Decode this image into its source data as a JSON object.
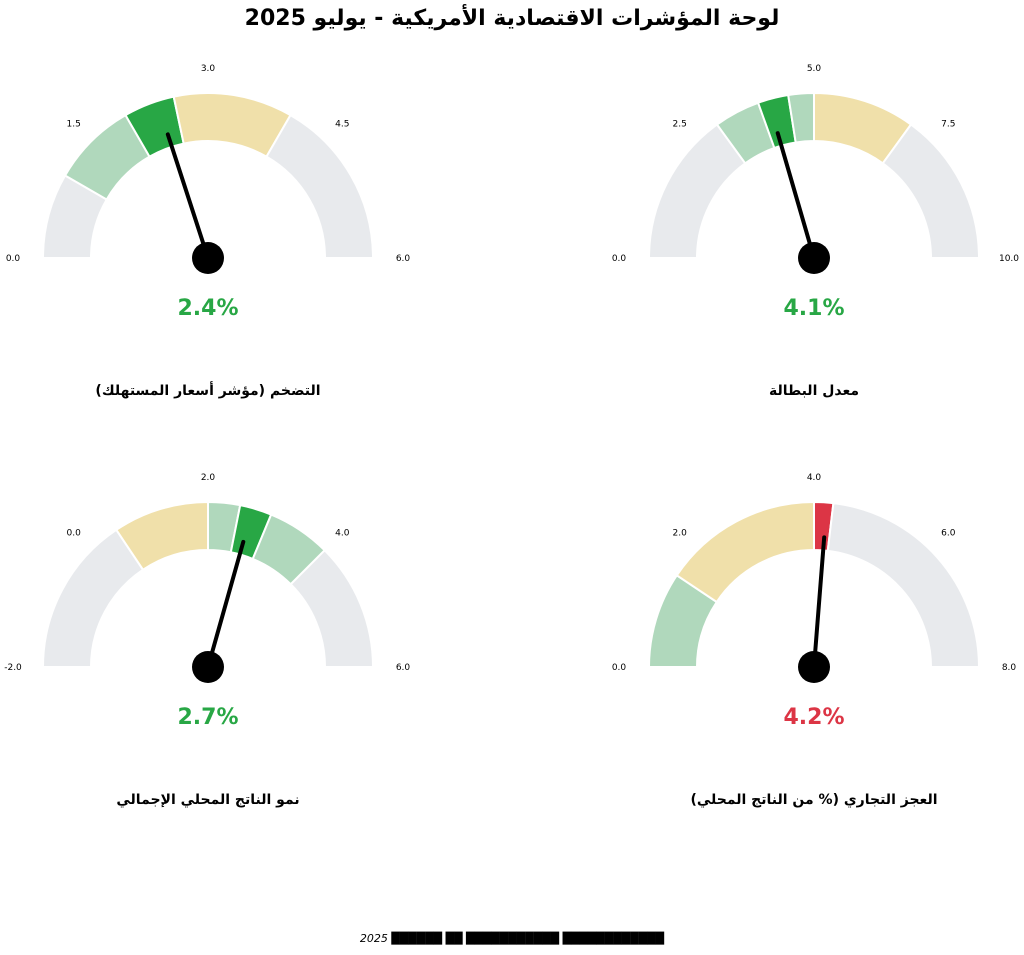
{
  "title": "لوحة المؤشرات الاقتصادية الأمريكية - يوليو 2025",
  "footer": "2025 ██████ ██ ███████████ ████████████",
  "colors": {
    "track": "#e8eaed",
    "good_zone": "#b0d8bc",
    "warn_zone": "#f0e0aa",
    "good_value": "#28a745",
    "bad_value": "#dc3545",
    "needle": "#000000"
  },
  "chart_data": [
    {
      "type": "gauge",
      "title": "التضخم (مؤشر أسعار المستهلك)",
      "value": 2.4,
      "value_label": "2.4%",
      "min": 0,
      "max": 6,
      "ticks": [
        "0.0",
        "1.5",
        "3.0",
        "4.5",
        "6.0"
      ],
      "status": "good",
      "zones": [
        {
          "from": 0,
          "to": 1.0,
          "color": "track"
        },
        {
          "from": 1.0,
          "to": 2.0,
          "color": "good_zone"
        },
        {
          "from": 2.0,
          "to": 2.6,
          "color": "good_value"
        },
        {
          "from": 2.6,
          "to": 4.0,
          "color": "warn_zone"
        },
        {
          "from": 4.0,
          "to": 6.0,
          "color": "track"
        }
      ]
    },
    {
      "type": "gauge",
      "title": "معدل البطالة",
      "value": 4.1,
      "value_label": "4.1%",
      "min": 0,
      "max": 10,
      "ticks": [
        "0.0",
        "2.5",
        "5.0",
        "7.5",
        "10.0"
      ],
      "status": "good",
      "zones": [
        {
          "from": 0,
          "to": 3.0,
          "color": "track"
        },
        {
          "from": 3.0,
          "to": 3.9,
          "color": "good_zone"
        },
        {
          "from": 3.9,
          "to": 4.5,
          "color": "good_value"
        },
        {
          "from": 4.5,
          "to": 5.0,
          "color": "good_zone"
        },
        {
          "from": 5.0,
          "to": 7.0,
          "color": "warn_zone"
        },
        {
          "from": 7.0,
          "to": 10.0,
          "color": "track"
        }
      ]
    },
    {
      "type": "gauge",
      "title": "نمو الناتج المحلي الإجمالي",
      "value": 2.7,
      "value_label": "2.7%",
      "min": -2,
      "max": 6,
      "ticks": [
        "-2.0",
        "0.0",
        "2.0",
        "4.0",
        "6.0"
      ],
      "status": "good",
      "zones": [
        {
          "from": -2,
          "to": 0.5,
          "color": "track"
        },
        {
          "from": 0.5,
          "to": 2.0,
          "color": "warn_zone"
        },
        {
          "from": 2.0,
          "to": 2.5,
          "color": "good_zone"
        },
        {
          "from": 2.5,
          "to": 3.0,
          "color": "good_value"
        },
        {
          "from": 3.0,
          "to": 4.0,
          "color": "good_zone"
        },
        {
          "from": 4.0,
          "to": 6.0,
          "color": "track"
        }
      ]
    },
    {
      "type": "gauge",
      "title": "العجز التجاري (% من الناتج المحلي)",
      "value": 4.2,
      "value_label": "4.2%",
      "min": 0,
      "max": 8,
      "ticks": [
        "0.0",
        "2.0",
        "4.0",
        "6.0",
        "8.0"
      ],
      "status": "bad",
      "zones": [
        {
          "from": 0,
          "to": 1.5,
          "color": "good_zone"
        },
        {
          "from": 1.5,
          "to": 4.0,
          "color": "warn_zone"
        },
        {
          "from": 4.0,
          "to": 4.3,
          "color": "bad_value"
        },
        {
          "from": 4.3,
          "to": 8.0,
          "color": "track"
        }
      ]
    }
  ]
}
